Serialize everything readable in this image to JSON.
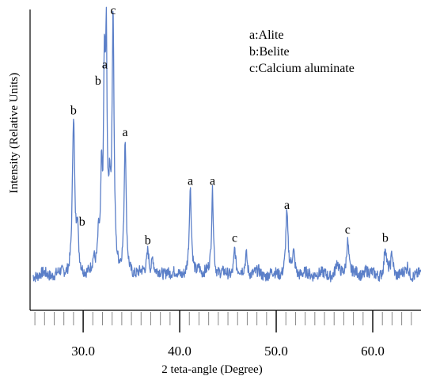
{
  "chart_data": {
    "type": "line",
    "xlabel": "2 teta-angle (Degree)",
    "ylabel": "Intensity (Relative Units)",
    "xlim": [
      24.5,
      65
    ],
    "ylim": [
      0,
      100
    ],
    "x_ticks": [
      30.0,
      40.0,
      50.0,
      60.0
    ],
    "x_tick_labels": [
      "30.0",
      "40.0",
      "50.0",
      "60.0"
    ],
    "minor_tick_step": 1,
    "grid": false,
    "line_color": "#5b7fc8",
    "legend": {
      "placement": "top-right",
      "entries": [
        "a:Alite",
        "b:Belite",
        "c:Calcium aluminate"
      ]
    },
    "baseline": 6,
    "peaks": [
      {
        "x": 29.0,
        "y": 63,
        "w": 0.14,
        "label": "b"
      },
      {
        "x": 29.4,
        "y": 22,
        "w": 0.12,
        "label": "b"
      },
      {
        "x": 31.1,
        "y": 10,
        "w": 0.1,
        "label": ""
      },
      {
        "x": 31.6,
        "y": 18,
        "w": 0.13,
        "label": ""
      },
      {
        "x": 31.9,
        "y": 38,
        "w": 0.1,
        "label": ""
      },
      {
        "x": 32.2,
        "y": 74,
        "w": 0.11,
        "label": "b"
      },
      {
        "x": 32.4,
        "y": 80,
        "w": 0.1,
        "label": "a"
      },
      {
        "x": 32.75,
        "y": 30,
        "w": 0.12,
        "label": ""
      },
      {
        "x": 33.1,
        "y": 100,
        "w": 0.12,
        "label": "c"
      },
      {
        "x": 34.35,
        "y": 55,
        "w": 0.12,
        "label": "a"
      },
      {
        "x": 36.7,
        "y": 15,
        "w": 0.14,
        "label": "b"
      },
      {
        "x": 37.2,
        "y": 12,
        "w": 0.12,
        "label": ""
      },
      {
        "x": 38.7,
        "y": 8,
        "w": 0.15,
        "label": ""
      },
      {
        "x": 41.1,
        "y": 37,
        "w": 0.13,
        "label": "a"
      },
      {
        "x": 42.0,
        "y": 9,
        "w": 0.15,
        "label": ""
      },
      {
        "x": 43.4,
        "y": 37,
        "w": 0.12,
        "label": "a"
      },
      {
        "x": 45.7,
        "y": 16,
        "w": 0.12,
        "label": "c"
      },
      {
        "x": 46.9,
        "y": 14,
        "w": 0.14,
        "label": ""
      },
      {
        "x": 48.2,
        "y": 7,
        "w": 0.15,
        "label": ""
      },
      {
        "x": 51.1,
        "y": 28,
        "w": 0.14,
        "label": "a"
      },
      {
        "x": 51.8,
        "y": 14,
        "w": 0.16,
        "label": ""
      },
      {
        "x": 54.1,
        "y": 7,
        "w": 0.16,
        "label": ""
      },
      {
        "x": 56.3,
        "y": 10,
        "w": 0.15,
        "label": ""
      },
      {
        "x": 57.4,
        "y": 19,
        "w": 0.15,
        "label": "c"
      },
      {
        "x": 59.3,
        "y": 8,
        "w": 0.16,
        "label": ""
      },
      {
        "x": 61.3,
        "y": 16,
        "w": 0.13,
        "label": "b"
      },
      {
        "x": 62.0,
        "y": 14,
        "w": 0.13,
        "label": ""
      },
      {
        "x": 63.6,
        "y": 9,
        "w": 0.15,
        "label": ""
      }
    ]
  }
}
